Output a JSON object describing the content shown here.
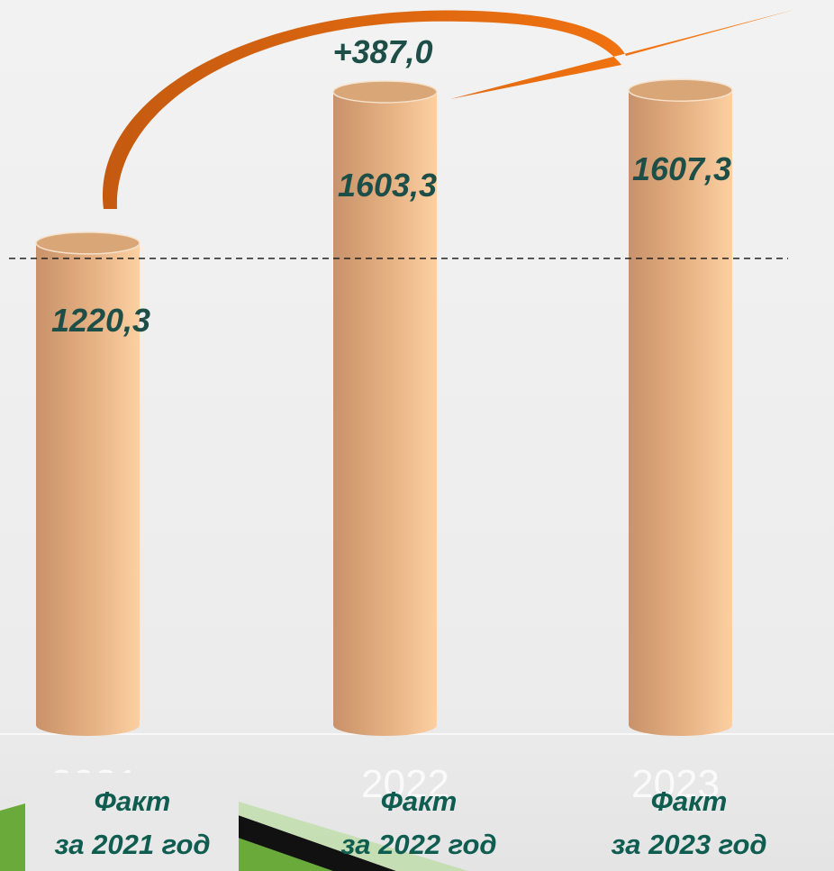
{
  "chart_data": {
    "type": "bar",
    "categories": [
      [
        "Факт",
        "за 2021 год"
      ],
      [
        "Факт",
        "за 2022 год"
      ],
      [
        "Факт",
        "за 2023 год"
      ]
    ],
    "years": [
      "2021",
      "2022",
      "2023"
    ],
    "values": [
      1220.3,
      1603.3,
      1607.3
    ],
    "value_labels": [
      "1220,3",
      "1603,3",
      "1607,3"
    ],
    "annotation": "+387,0"
  }
}
